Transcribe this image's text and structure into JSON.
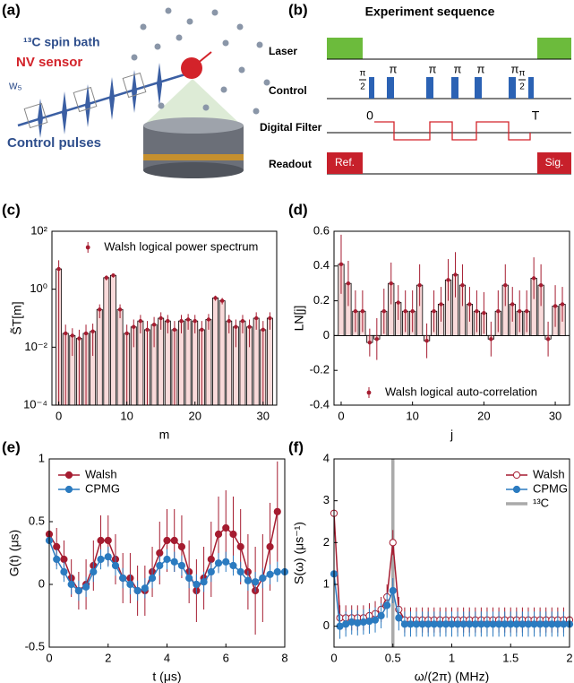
{
  "panel_labels": [
    "(a)",
    "(b)",
    "(c)",
    "(d)",
    "(e)",
    "(f)"
  ],
  "illustration": {
    "bath_label": "¹³C spin bath",
    "sensor_label": "NV sensor",
    "pulse_symbol": "w₅",
    "pulses_label": "Control pulses"
  },
  "sequence": {
    "title": "Experiment sequence",
    "rows": [
      "Laser",
      "Control",
      "Digital Filter",
      "Readout"
    ],
    "pulse_labels": [
      {
        "numerator": "π",
        "denominator": "2"
      },
      "π",
      "π",
      "π",
      "π",
      "π",
      {
        "numerator": "π",
        "denominator": "2"
      }
    ],
    "filter_labels": [
      "0",
      "T"
    ],
    "readout_labels": [
      "Ref.",
      "Sig."
    ]
  },
  "chart_data": [
    {
      "type": "bar",
      "xlabel": "m",
      "ylabel": "S̃T[m]",
      "yscale": "log",
      "legend": "upper right",
      "xlim": [
        -1,
        32
      ],
      "xticks": [
        0,
        10,
        20,
        30
      ],
      "ylim": [
        0.0001,
        100
      ],
      "yticks": [
        {
          "value": 0.0001,
          "label": "10⁻⁴"
        },
        {
          "value": 0.01,
          "label": "10⁻²"
        },
        {
          "value": 1,
          "label": "10⁰"
        },
        {
          "value": 100,
          "label": "10²"
        }
      ],
      "x": [
        0,
        1,
        2,
        3,
        4,
        5,
        6,
        7,
        8,
        9,
        10,
        11,
        12,
        13,
        14,
        15,
        16,
        17,
        18,
        19,
        20,
        21,
        22,
        23,
        24,
        25,
        26,
        27,
        28,
        29,
        30,
        31
      ],
      "series": [
        {
          "name": "Walsh logical power spectrum",
          "color": "#a51c30",
          "bar_color": "#f9dada",
          "values": [
            5,
            0.03,
            0.025,
            0.02,
            0.03,
            0.035,
            0.2,
            2.5,
            3,
            0.2,
            0.03,
            0.05,
            0.08,
            0.04,
            0.06,
            0.1,
            0.08,
            0.04,
            0.08,
            0.09,
            0.08,
            0.04,
            0.09,
            0.5,
            0.4,
            0.08,
            0.05,
            0.08,
            0.05,
            0.1,
            0.04,
            0.1
          ],
          "errors": [
            5,
            0.03,
            0.02,
            0.02,
            0.03,
            0.03,
            0.1,
            0.5,
            0.5,
            0.1,
            0.03,
            0.04,
            0.05,
            0.04,
            0.05,
            0.06,
            0.05,
            0.04,
            0.05,
            0.05,
            0.05,
            0.04,
            0.05,
            0.1,
            0.1,
            0.05,
            0.04,
            0.05,
            0.04,
            0.06,
            0.04,
            0.06
          ]
        }
      ]
    },
    {
      "type": "bar",
      "xlabel": "j",
      "ylabel": "LN[j]",
      "legend": "lower right",
      "zero_line": true,
      "xlim": [
        -1,
        32
      ],
      "xticks": [
        0,
        10,
        20,
        30
      ],
      "ylim": [
        -0.4,
        0.6
      ],
      "yticks": [
        -0.4,
        -0.2,
        0,
        0.2,
        0.4,
        0.6
      ],
      "x": [
        0,
        1,
        2,
        3,
        4,
        5,
        6,
        7,
        8,
        9,
        10,
        11,
        12,
        13,
        14,
        15,
        16,
        17,
        18,
        19,
        20,
        21,
        22,
        23,
        24,
        25,
        26,
        27,
        28,
        29,
        30,
        31
      ],
      "series": [
        {
          "name": "Walsh logical auto-correlation",
          "color": "#a51c30",
          "bar_color": "#f9dada",
          "values": [
            0.41,
            0.3,
            0.14,
            0.14,
            -0.04,
            -0.02,
            0.14,
            0.3,
            0.19,
            0.14,
            0.14,
            0.29,
            -0.03,
            0.14,
            0.18,
            0.32,
            0.35,
            0.29,
            0.18,
            0.14,
            0.13,
            -0.02,
            0.14,
            0.29,
            0.18,
            0.14,
            0.14,
            0.33,
            0.29,
            -0.02,
            0.17,
            0.18
          ],
          "errors": [
            0.17,
            0.13,
            0.12,
            0.12,
            0.08,
            0.12,
            0.13,
            0.12,
            0.1,
            0.12,
            0.12,
            0.12,
            0.1,
            0.12,
            0.1,
            0.12,
            0.13,
            0.12,
            0.1,
            0.12,
            0.12,
            0.1,
            0.12,
            0.12,
            0.1,
            0.12,
            0.12,
            0.12,
            0.12,
            0.1,
            0.12,
            0.1
          ]
        }
      ]
    },
    {
      "type": "line",
      "xlabel": "t (μs)",
      "ylabel": "G(t) (μs)",
      "legend": "upper left",
      "xlim": [
        0,
        8
      ],
      "xticks": [
        0,
        2,
        4,
        6,
        8
      ],
      "ylim": [
        -0.5,
        1
      ],
      "yticks": [
        -0.5,
        0,
        0.5,
        1
      ],
      "x": [
        0,
        0.25,
        0.5,
        0.75,
        1,
        1.25,
        1.5,
        1.75,
        2,
        2.25,
        2.5,
        2.75,
        3,
        3.25,
        3.5,
        3.75,
        4,
        4.25,
        4.5,
        4.75,
        5,
        5.25,
        5.5,
        5.75,
        6,
        6.25,
        6.5,
        6.75,
        7,
        7.25,
        7.5,
        7.75,
        8
      ],
      "series": [
        {
          "name": "Walsh",
          "color": "#a51c30",
          "values": [
            0.4,
            0.3,
            0.2,
            0.05,
            -0.05,
            0,
            0.15,
            0.35,
            0.35,
            0.2,
            0.05,
            0.05,
            -0.05,
            -0.05,
            0.1,
            0.25,
            0.35,
            0.35,
            0.3,
            0.1,
            -0.05,
            0.05,
            0.2,
            0.4,
            0.45,
            0.4,
            0.3,
            0.1,
            -0.05,
            0.05,
            0.3,
            0.58,
            null
          ],
          "errors": [
            0.15,
            0.15,
            0.15,
            0.15,
            0.15,
            0.2,
            0.2,
            0.2,
            0.2,
            0.2,
            0.2,
            0.2,
            0.2,
            0.2,
            0.2,
            0.25,
            0.25,
            0.25,
            0.25,
            0.25,
            0.25,
            0.25,
            0.3,
            0.3,
            0.3,
            0.3,
            0.3,
            0.3,
            0.35,
            0.35,
            0.35,
            0.4,
            null
          ]
        },
        {
          "name": "CPMG",
          "color": "#2b7bc0",
          "values": [
            0.35,
            0.2,
            0.1,
            0,
            -0.05,
            -0.02,
            0.1,
            0.2,
            0.22,
            0.15,
            0.05,
            0,
            -0.05,
            -0.03,
            0.05,
            0.15,
            0.2,
            0.18,
            0.15,
            0.05,
            0,
            0.02,
            0.1,
            0.17,
            0.18,
            0.15,
            0.1,
            0.03,
            0.02,
            0.05,
            0.08,
            0.1,
            0.1
          ],
          "errors": [
            0.08,
            0.08,
            0.08,
            0.08,
            0.08,
            0.08,
            0.08,
            0.08,
            0.08,
            0.08,
            0.08,
            0.08,
            0.08,
            0.08,
            0.08,
            0.08,
            0.08,
            0.08,
            0.08,
            0.08,
            0.08,
            0.08,
            0.08,
            0.08,
            0.08,
            0.08,
            0.08,
            0.08,
            0.08,
            0.08,
            0.08,
            0.08,
            0.08
          ]
        }
      ]
    },
    {
      "type": "line",
      "xlabel": "ω/(2π) (MHz)",
      "ylabel": "S(ω) (μs⁻¹)",
      "legend": "upper right",
      "xlim": [
        0,
        2
      ],
      "xticks": [
        0,
        0.5,
        1,
        1.5,
        2
      ],
      "ylim": [
        -0.5,
        4
      ],
      "yticks": [
        0,
        1,
        2,
        3,
        4
      ],
      "x": [
        0,
        0.05,
        0.1,
        0.15,
        0.2,
        0.25,
        0.3,
        0.35,
        0.4,
        0.45,
        0.5,
        0.55,
        0.6,
        0.65,
        0.7,
        0.75,
        0.8,
        0.85,
        0.9,
        0.95,
        1,
        1.05,
        1.1,
        1.15,
        1.2,
        1.25,
        1.3,
        1.35,
        1.4,
        1.45,
        1.5,
        1.55,
        1.6,
        1.65,
        1.7,
        1.75,
        1.8,
        1.85,
        1.9,
        1.95,
        2
      ],
      "series": [
        {
          "name": "Walsh",
          "color": "#a51c30",
          "hollow": true,
          "values": [
            2.7,
            0.2,
            0.2,
            0.2,
            0.2,
            0.2,
            0.25,
            0.3,
            0.4,
            0.7,
            2,
            0.4,
            0.15,
            0.15,
            0.15,
            0.15,
            0.15,
            0.15,
            0.15,
            0.15,
            0.15,
            0.15,
            0.15,
            0.15,
            0.15,
            0.15,
            0.15,
            0.15,
            0.15,
            0.15,
            0.15,
            0.15,
            0.15,
            0.15,
            0.15,
            0.15,
            0.15,
            0.15,
            0.15,
            0.15,
            0.15
          ],
          "errors": [
            0.3,
            0.3,
            0.3,
            0.3,
            0.3,
            0.3,
            0.3,
            0.3,
            0.3,
            0.3,
            0.3,
            0.3,
            0.3,
            0.3,
            0.3,
            0.3,
            0.3,
            0.3,
            0.3,
            0.3,
            0.3,
            0.3,
            0.3,
            0.3,
            0.3,
            0.3,
            0.3,
            0.3,
            0.3,
            0.3,
            0.3,
            0.3,
            0.3,
            0.3,
            0.3,
            0.3,
            0.3,
            0.3,
            0.3,
            0.3,
            0.3
          ]
        },
        {
          "name": "CPMG",
          "color": "#2b7bc0",
          "values": [
            1.25,
            0,
            0.05,
            0.1,
            0.08,
            0.1,
            0.12,
            0.15,
            0.25,
            0.5,
            0.85,
            0.2,
            0.05,
            0.05,
            0.05,
            0.05,
            0.05,
            0.05,
            0.05,
            0.05,
            0.05,
            0.05,
            0.05,
            0.05,
            0.05,
            0.05,
            0.05,
            0.05,
            0.05,
            0.05,
            0.05,
            0.05,
            0.05,
            0.05,
            0.05,
            0.05,
            0.05,
            0.05,
            0.05,
            0.05,
            0.05
          ],
          "errors": [
            0.3,
            0.3,
            0.3,
            0.3,
            0.3,
            0.3,
            0.3,
            0.3,
            0.3,
            0.3,
            0.3,
            0.3,
            0.3,
            0.3,
            0.3,
            0.3,
            0.3,
            0.3,
            0.3,
            0.3,
            0.3,
            0.3,
            0.3,
            0.3,
            0.3,
            0.3,
            0.3,
            0.3,
            0.3,
            0.3,
            0.3,
            0.3,
            0.3,
            0.3,
            0.3,
            0.3,
            0.3,
            0.3,
            0.3,
            0.3,
            0.3
          ]
        }
      ],
      "vlines": [
        {
          "name": "¹³C",
          "x": 0.5,
          "color": "#aaaaaa"
        }
      ]
    }
  ]
}
